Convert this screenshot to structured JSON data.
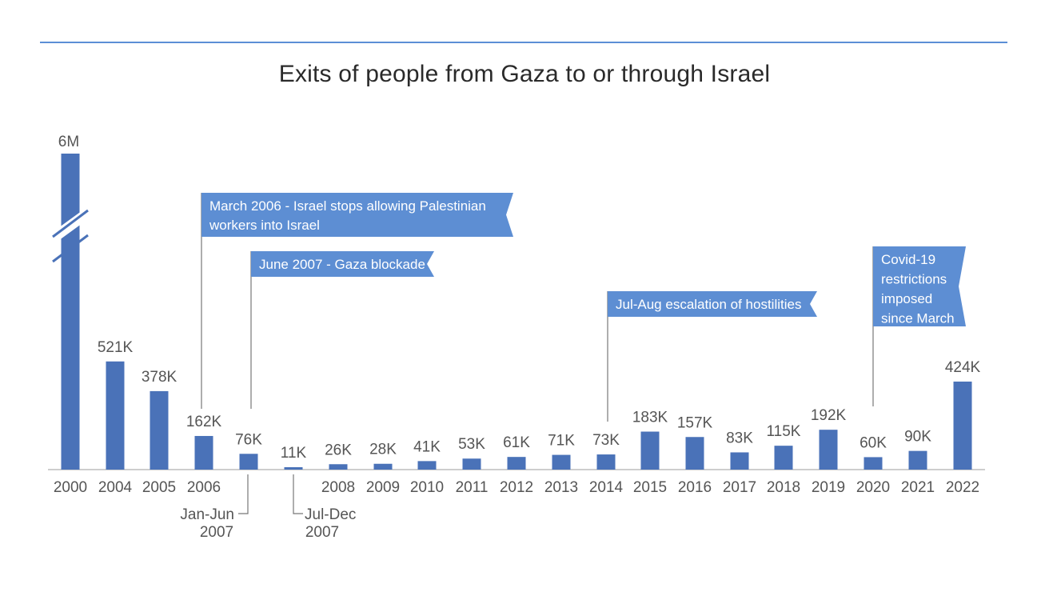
{
  "title": "Exits of people from Gaza to or through Israel",
  "colors": {
    "bar": "#4a72b8",
    "callout": "#5d8ed3",
    "axis": "#bdbdbd",
    "rule": "#5b8fd6"
  },
  "chart_data": {
    "type": "bar",
    "title": "Exits of people from Gaza to or through Israel",
    "axis_break": {
      "category": "2000"
    },
    "categories": [
      "2000",
      "2004",
      "2005",
      "2006",
      "Jan-Jun 2007",
      "Jul-Dec 2007",
      "2008",
      "2009",
      "2010",
      "2011",
      "2012",
      "2013",
      "2014",
      "2015",
      "2016",
      "2017",
      "2018",
      "2019",
      "2020",
      "2021",
      "2022"
    ],
    "values": [
      6000000,
      521000,
      378000,
      162000,
      76000,
      11000,
      26000,
      28000,
      41000,
      53000,
      61000,
      71000,
      73000,
      183000,
      157000,
      83000,
      115000,
      192000,
      60000,
      90000,
      424000
    ],
    "value_labels": [
      "6M",
      "521K",
      "378K",
      "162K",
      "76K",
      "11K",
      "26K",
      "28K",
      "41K",
      "53K",
      "61K",
      "71K",
      "73K",
      "183K",
      "157K",
      "83K",
      "115K",
      "192K",
      "60K",
      "90K",
      "424K"
    ],
    "tick_labels": [
      "2000",
      "2004",
      "2005",
      "2006",
      "",
      "",
      "2008",
      "2009",
      "2010",
      "2011",
      "2012",
      "2013",
      "2014",
      "2015",
      "2016",
      "2017",
      "2018",
      "2019",
      "2020",
      "2021",
      "2022"
    ],
    "sub_tick_labels": [
      {
        "category": "Jan-Jun 2007",
        "lines": [
          "Jan-Jun",
          "2007"
        ]
      },
      {
        "category": "Jul-Dec 2007",
        "lines": [
          "Jul-Dec",
          "2007"
        ]
      }
    ],
    "annotations": [
      {
        "lines": [
          "March 2006 - Israel stops allowing Palestinian",
          "workers into Israel"
        ],
        "anchor": "2006"
      },
      {
        "lines": [
          "June 2007 - Gaza blockade"
        ],
        "anchor": "Jan-Jun 2007"
      },
      {
        "lines": [
          "Jul-Aug escalation of hostilities"
        ],
        "anchor": "2014"
      },
      {
        "lines": [
          "Covid-19",
          "restrictions",
          "imposed",
          "since March"
        ],
        "anchor": "2020"
      }
    ]
  }
}
